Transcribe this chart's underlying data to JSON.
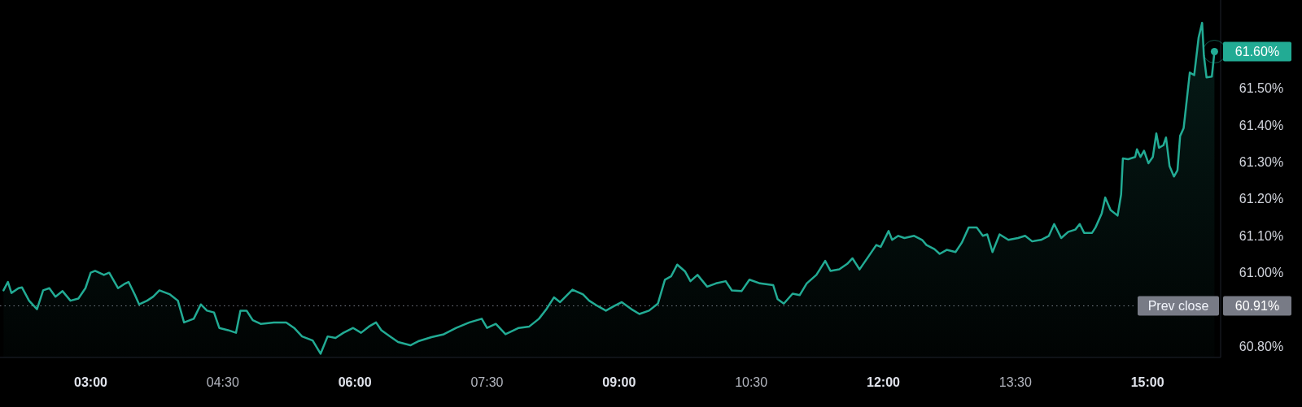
{
  "chart_data": {
    "type": "area",
    "grid": false,
    "marker": "none",
    "line_style": "solid",
    "x": [
      2.01,
      2.06,
      2.1,
      2.18,
      2.22,
      2.3,
      2.39,
      2.46,
      2.53,
      2.6,
      2.68,
      2.77,
      2.86,
      2.94,
      3.0,
      3.05,
      3.15,
      3.21,
      3.31,
      3.38,
      3.43,
      3.5,
      3.55,
      3.64,
      3.71,
      3.78,
      3.9,
      3.99,
      4.06,
      4.17,
      4.25,
      4.32,
      4.4,
      4.46,
      4.56,
      4.65,
      4.7,
      4.77,
      4.84,
      4.93,
      5.08,
      5.22,
      5.31,
      5.4,
      5.52,
      5.61,
      5.69,
      5.78,
      5.87,
      5.98,
      6.07,
      6.16,
      6.24,
      6.3,
      6.4,
      6.49,
      6.63,
      6.72,
      6.87,
      7.01,
      7.15,
      7.3,
      7.44,
      7.5,
      7.6,
      7.71,
      7.86,
      7.98,
      8.09,
      8.18,
      8.26,
      8.33,
      8.47,
      8.59,
      8.66,
      8.76,
      8.85,
      8.94,
      9.03,
      9.14,
      9.23,
      9.34,
      9.44,
      9.52,
      9.59,
      9.66,
      9.75,
      9.81,
      9.89,
      10.0,
      10.1,
      10.21,
      10.28,
      10.39,
      10.48,
      10.6,
      10.75,
      10.8,
      10.87,
      10.97,
      11.05,
      11.13,
      11.24,
      11.34,
      11.4,
      11.5,
      11.59,
      11.65,
      11.73,
      11.84,
      11.92,
      11.97,
      12.02,
      12.06,
      12.1,
      12.17,
      12.24,
      12.35,
      12.44,
      12.49,
      12.58,
      12.64,
      12.72,
      12.82,
      12.89,
      12.97,
      13.06,
      13.13,
      13.18,
      13.24,
      13.32,
      13.42,
      13.53,
      13.61,
      13.69,
      13.79,
      13.88,
      13.94,
      14.02,
      14.1,
      14.18,
      14.23,
      14.28,
      14.37,
      14.41,
      14.48,
      14.52,
      14.58,
      14.66,
      14.7,
      14.72,
      14.78,
      14.86,
      14.88,
      14.92,
      14.96,
      15.01,
      15.06,
      15.1,
      15.13,
      15.18,
      15.21,
      15.25,
      15.3,
      15.34,
      15.37,
      15.41,
      15.48,
      15.53,
      15.58,
      15.62,
      15.64,
      15.67,
      15.73,
      15.76
    ],
    "series": [
      {
        "color": "#22ab94",
        "values": [
          60.952,
          60.975,
          60.945,
          60.958,
          60.96,
          60.924,
          60.901,
          60.952,
          60.958,
          60.935,
          60.95,
          60.924,
          60.93,
          60.958,
          61.0,
          61.005,
          60.994,
          61.0,
          60.958,
          60.969,
          60.975,
          60.941,
          60.914,
          60.924,
          60.935,
          60.952,
          60.941,
          60.924,
          60.865,
          60.875,
          60.914,
          60.897,
          60.892,
          60.85,
          60.844,
          60.837,
          60.897,
          60.897,
          60.871,
          60.861,
          60.865,
          60.865,
          60.85,
          60.827,
          60.816,
          60.78,
          60.827,
          60.823,
          60.837,
          60.85,
          60.837,
          60.854,
          60.865,
          60.844,
          60.827,
          60.812,
          60.803,
          60.814,
          60.825,
          60.833,
          60.85,
          60.865,
          60.875,
          60.85,
          60.861,
          60.833,
          60.85,
          60.854,
          60.875,
          60.903,
          60.933,
          60.92,
          60.954,
          60.941,
          60.924,
          60.909,
          60.897,
          60.909,
          60.92,
          60.901,
          60.888,
          60.897,
          60.916,
          60.981,
          60.99,
          61.022,
          61.003,
          60.977,
          60.994,
          60.962,
          60.971,
          60.977,
          60.952,
          60.95,
          60.981,
          60.971,
          60.966,
          60.928,
          60.916,
          60.943,
          60.939,
          60.971,
          60.994,
          61.032,
          61.005,
          61.009,
          61.024,
          61.039,
          61.009,
          61.047,
          61.075,
          61.07,
          61.094,
          61.113,
          61.089,
          61.1,
          61.094,
          61.1,
          61.089,
          61.075,
          61.064,
          61.051,
          61.062,
          61.056,
          61.081,
          61.123,
          61.123,
          61.1,
          61.104,
          61.056,
          61.104,
          61.089,
          61.094,
          61.1,
          61.085,
          61.089,
          61.1,
          61.132,
          61.094,
          61.111,
          61.117,
          61.132,
          61.108,
          61.108,
          61.123,
          61.161,
          61.204,
          61.17,
          61.155,
          61.212,
          61.31,
          61.308,
          61.314,
          61.335,
          61.314,
          61.331,
          61.297,
          61.314,
          61.378,
          61.339,
          61.346,
          61.367,
          61.289,
          61.261,
          61.278,
          61.371,
          61.392,
          61.543,
          61.536,
          61.638,
          61.678,
          61.589,
          61.53,
          61.532,
          61.6
        ]
      }
    ],
    "xlim": [
      1.97,
      15.83
    ],
    "ylim": [
      60.77,
      61.74
    ],
    "xticks": [
      {
        "value": 3,
        "label": "03:00"
      },
      {
        "value": 4.5,
        "label": "04:30"
      },
      {
        "value": 6,
        "label": "06:00"
      },
      {
        "value": 7.5,
        "label": "07:30"
      },
      {
        "value": 9,
        "label": "09:00"
      },
      {
        "value": 10.5,
        "label": "10:30"
      },
      {
        "value": 12,
        "label": "12:00"
      },
      {
        "value": 13.5,
        "label": "13:30"
      },
      {
        "value": 15,
        "label": "15:00"
      }
    ],
    "yticks": [
      {
        "value": 60.8,
        "label": "60.80%"
      },
      {
        "value": 61.0,
        "label": "61.00%"
      },
      {
        "value": 61.1,
        "label": "61.10%"
      },
      {
        "value": 61.2,
        "label": "61.20%"
      },
      {
        "value": 61.3,
        "label": "61.30%"
      },
      {
        "value": 61.4,
        "label": "61.40%"
      },
      {
        "value": 61.5,
        "label": "61.50%"
      }
    ],
    "ref_lines": [
      {
        "axis": "y",
        "value": 60.91,
        "label": "Prev close",
        "color": "#787b86",
        "line_style": "dotted"
      }
    ],
    "annotations": [
      {
        "text": "61.60%",
        "x": 15.76,
        "y": 61.6
      },
      "60.91%"
    ]
  }
}
